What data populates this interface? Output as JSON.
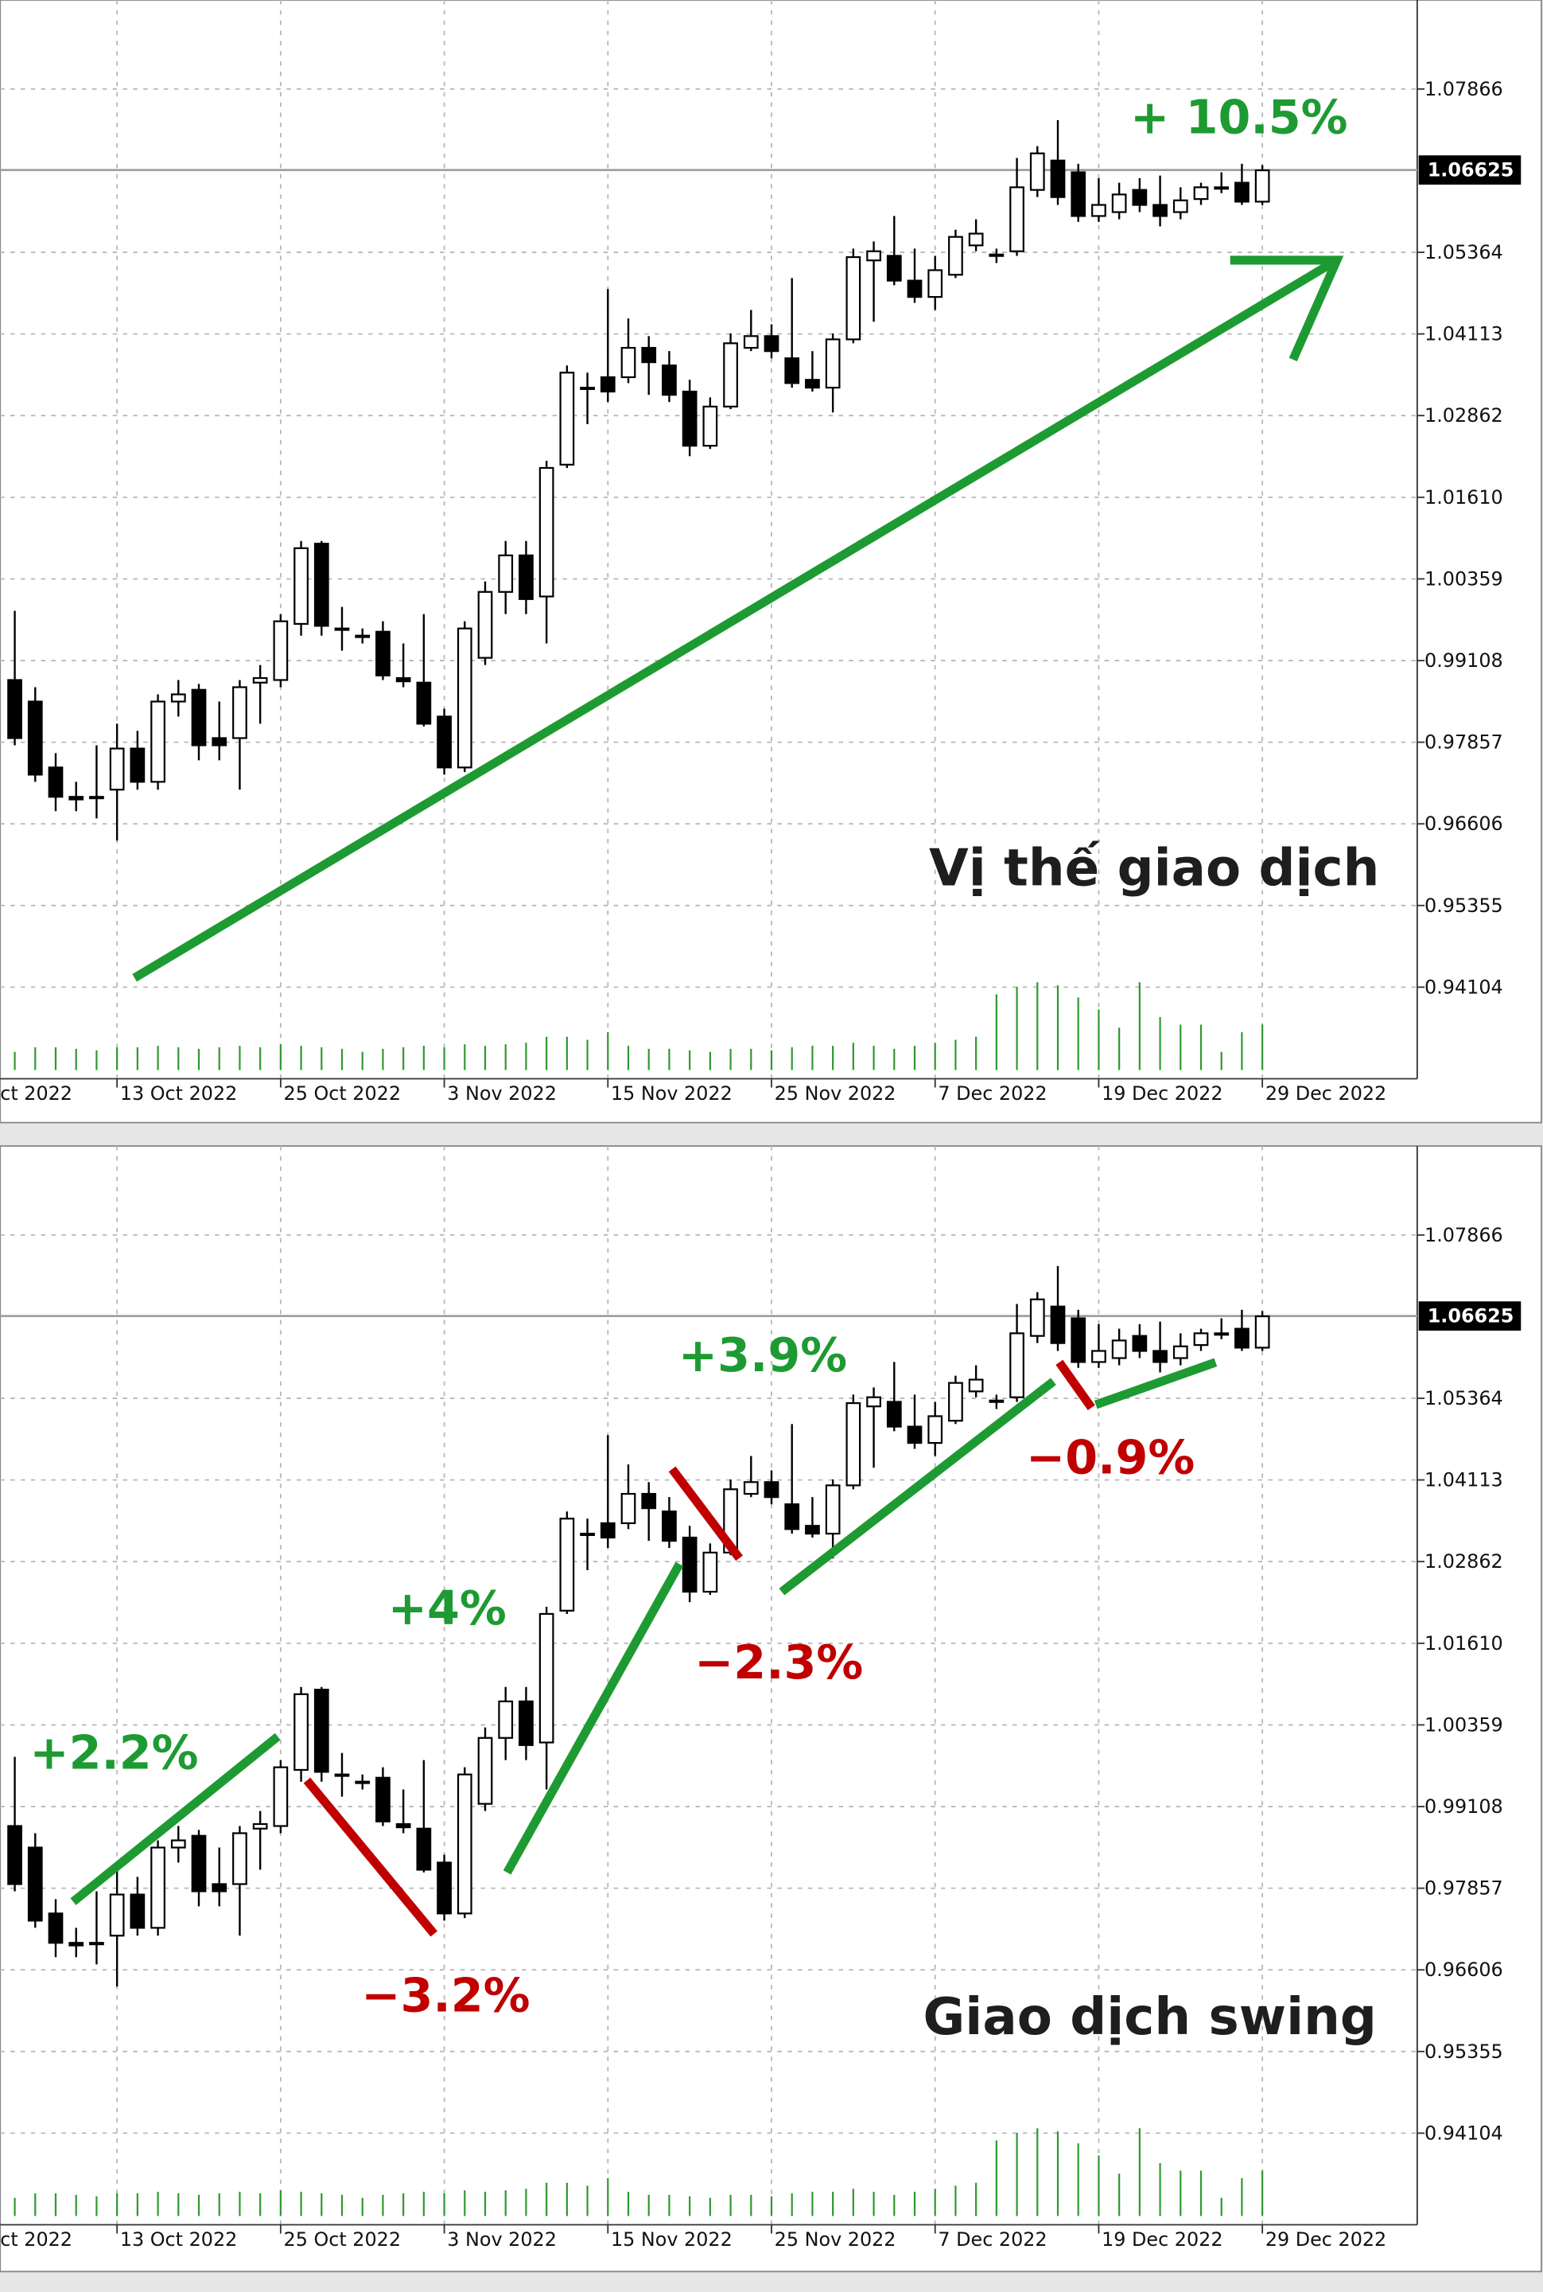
{
  "chart_data": [
    {
      "type": "candlestick",
      "label": "Vị thế giao dịch",
      "annotations": [
        {
          "text": "+ 10.5%",
          "color": "#1e9a32"
        }
      ],
      "categories": [
        "ct 2022",
        null,
        null,
        null,
        null,
        "13 Oct 2022",
        null,
        null,
        null,
        null,
        null,
        null,
        null,
        "25 Oct 2022",
        null,
        null,
        null,
        null,
        null,
        null,
        null,
        "3 Nov 2022",
        null,
        null,
        null,
        null,
        null,
        null,
        null,
        "15 Nov 2022",
        null,
        null,
        null,
        null,
        null,
        null,
        null,
        "25 Nov 2022",
        null,
        null,
        null,
        null,
        null,
        null,
        null,
        "7 Dec 2022",
        null,
        null,
        null,
        null,
        null,
        null,
        null,
        "19 Dec 2022",
        null,
        null,
        null,
        null,
        null,
        null,
        null,
        "29 Dec 2022"
      ],
      "open": [
        0.9881,
        0.9848,
        0.9747,
        0.9702,
        0.9702,
        0.9713,
        0.9776,
        0.9725,
        0.9848,
        0.9866,
        0.9792,
        0.9792,
        0.9877,
        0.9881,
        0.9967,
        1.009,
        0.996,
        0.9949,
        0.9955,
        0.9884,
        0.9877,
        0.9825,
        0.9747,
        0.9915,
        1.0016,
        1.0072,
        1.0009,
        1.0211,
        1.0329,
        1.0345,
        1.0345,
        1.039,
        1.0363,
        1.0323,
        1.024,
        1.03,
        1.039,
        1.0408,
        1.0374,
        1.0341,
        1.0329,
        1.0403,
        1.0524,
        1.0531,
        1.0493,
        1.0468,
        1.0502,
        1.0547,
        1.0531,
        1.0538,
        1.0632,
        1.0677,
        1.0659,
        1.0592,
        1.0598,
        1.0632,
        1.0609,
        1.0598,
        1.0618,
        1.0636,
        1.0643,
        1.0614
      ],
      "high": [
        0.9987,
        0.987,
        0.9769,
        0.9725,
        0.9781,
        0.9814,
        0.9803,
        0.9859,
        0.9881,
        0.9875,
        0.9848,
        0.9881,
        0.9904,
        0.9982,
        1.0094,
        1.0094,
        0.9993,
        0.996,
        0.9971,
        0.9937,
        0.9982,
        0.9837,
        0.9971,
        1.0032,
        1.0094,
        1.0094,
        1.0217,
        1.0363,
        1.0352,
        1.048,
        1.0435,
        1.0408,
        1.0385,
        1.0341,
        1.0314,
        1.0412,
        1.0448,
        1.0426,
        1.0497,
        1.0385,
        1.0412,
        1.0542,
        1.0553,
        1.0592,
        1.0542,
        1.0531,
        1.0571,
        1.0587,
        1.0542,
        1.0681,
        1.0699,
        1.0739,
        1.0672,
        1.065,
        1.0643,
        1.065,
        1.0654,
        1.0636,
        1.0643,
        1.0659,
        1.0672,
        1.067
      ],
      "low": [
        0.9781,
        0.9725,
        0.968,
        0.968,
        0.9669,
        0.9635,
        0.9713,
        0.9713,
        0.9825,
        0.9758,
        0.9758,
        0.9713,
        0.9814,
        0.987,
        0.9949,
        0.9949,
        0.9926,
        0.9937,
        0.9881,
        0.987,
        0.981,
        0.9736,
        0.974,
        0.9904,
        0.9982,
        0.9982,
        0.9937,
        1.0206,
        1.0273,
        1.0307,
        1.0336,
        1.0318,
        1.0307,
        1.0224,
        1.0235,
        1.0296,
        1.0385,
        1.0374,
        1.0329,
        1.0323,
        1.0291,
        1.0397,
        1.043,
        1.0486,
        1.0459,
        1.0448,
        1.0497,
        1.0538,
        1.052,
        1.0531,
        1.0621,
        1.0609,
        1.0583,
        1.0583,
        1.0587,
        1.0598,
        1.0576,
        1.0587,
        1.0609,
        1.0627,
        1.0609,
        1.0609
      ],
      "close": [
        0.9792,
        0.9736,
        0.9702,
        0.9698,
        0.97,
        0.9776,
        0.9725,
        0.9848,
        0.9859,
        0.9781,
        0.9781,
        0.987,
        0.9884,
        0.9971,
        1.0083,
        0.9964,
        0.9958,
        0.9947,
        0.9888,
        0.9879,
        0.9814,
        0.9747,
        0.996,
        1.0016,
        1.0072,
        1.0005,
        1.0206,
        1.0352,
        1.0327,
        1.0323,
        1.039,
        1.0368,
        1.0318,
        1.024,
        1.03,
        1.0397,
        1.0408,
        1.0385,
        1.0336,
        1.0329,
        1.0403,
        1.0529,
        1.0538,
        1.0493,
        1.0468,
        1.0509,
        1.056,
        1.0565,
        1.0533,
        1.0636,
        1.0688,
        1.0621,
        1.0592,
        1.0609,
        1.0625,
        1.0609,
        1.0592,
        1.0616,
        1.0636,
        1.0634,
        1.0614,
        1.0662
      ],
      "volume": [
        12,
        15,
        15,
        14,
        13,
        15,
        15,
        16,
        15,
        14,
        15,
        16,
        15,
        17,
        16,
        15,
        14,
        12,
        14,
        15,
        16,
        15,
        17,
        16,
        17,
        18,
        22,
        22,
        20,
        25,
        16,
        14,
        14,
        13,
        12,
        14,
        14,
        13,
        15,
        16,
        16,
        18,
        16,
        14,
        16,
        18,
        20,
        22,
        50,
        55,
        58,
        56,
        48,
        40,
        28,
        58,
        35,
        30,
        30,
        12,
        25,
        30
      ],
      "colors": {
        "up": "#ffffff",
        "down": "#000000",
        "volume": "#2e9a2e"
      },
      "current_price": 1.06625,
      "ylim": [
        0.927,
        1.0923
      ],
      "yticks": [
        0.94104,
        0.95355,
        0.96606,
        0.97857,
        0.99108,
        1.00359,
        {
          "value": 1.0161,
          "label": "1.01610"
        },
        1.02862,
        1.04113,
        1.05364,
        1.07866
      ],
      "grid": true
    },
    {
      "type": "candlestick",
      "label": "Giao dịch swing",
      "annotations": [
        {
          "text": "+2.2%",
          "color": "#1e9a32"
        },
        {
          "text": "−3.2%",
          "color": "#c00000"
        },
        {
          "text": "+4%",
          "color": "#1e9a32"
        },
        {
          "text": "−2.3%",
          "color": "#c00000"
        },
        {
          "text": "+3.9%",
          "color": "#1e9a32"
        },
        {
          "text": "−0.9%",
          "color": "#c00000"
        }
      ],
      "categories": [
        "ct 2022",
        null,
        null,
        null,
        null,
        "13 Oct 2022",
        null,
        null,
        null,
        null,
        null,
        null,
        null,
        "25 Oct 2022",
        null,
        null,
        null,
        null,
        null,
        null,
        null,
        "3 Nov 2022",
        null,
        null,
        null,
        null,
        null,
        null,
        null,
        "15 Nov 2022",
        null,
        null,
        null,
        null,
        null,
        null,
        null,
        "25 Nov 2022",
        null,
        null,
        null,
        null,
        null,
        null,
        null,
        "7 Dec 2022",
        null,
        null,
        null,
        null,
        null,
        null,
        null,
        "19 Dec 2022",
        null,
        null,
        null,
        null,
        null,
        null,
        null,
        "29 Dec 2022"
      ],
      "open": [
        0.9881,
        0.9848,
        0.9747,
        0.9702,
        0.9702,
        0.9713,
        0.9776,
        0.9725,
        0.9848,
        0.9866,
        0.9792,
        0.9792,
        0.9877,
        0.9881,
        0.9967,
        1.009,
        0.996,
        0.9949,
        0.9955,
        0.9884,
        0.9877,
        0.9825,
        0.9747,
        0.9915,
        1.0016,
        1.0072,
        1.0009,
        1.0211,
        1.0329,
        1.0345,
        1.0345,
        1.039,
        1.0363,
        1.0323,
        1.024,
        1.03,
        1.039,
        1.0408,
        1.0374,
        1.0341,
        1.0329,
        1.0403,
        1.0524,
        1.0531,
        1.0493,
        1.0468,
        1.0502,
        1.0547,
        1.0531,
        1.0538,
        1.0632,
        1.0677,
        1.0659,
        1.0592,
        1.0598,
        1.0632,
        1.0609,
        1.0598,
        1.0618,
        1.0636,
        1.0643,
        1.0614
      ],
      "high": [
        0.9987,
        0.987,
        0.9769,
        0.9725,
        0.9781,
        0.9814,
        0.9803,
        0.9859,
        0.9881,
        0.9875,
        0.9848,
        0.9881,
        0.9904,
        0.9982,
        1.0094,
        1.0094,
        0.9993,
        0.996,
        0.9971,
        0.9937,
        0.9982,
        0.9837,
        0.9971,
        1.0032,
        1.0094,
        1.0094,
        1.0217,
        1.0363,
        1.0352,
        1.048,
        1.0435,
        1.0408,
        1.0385,
        1.0341,
        1.0314,
        1.0412,
        1.0448,
        1.0426,
        1.0497,
        1.0385,
        1.0412,
        1.0542,
        1.0553,
        1.0592,
        1.0542,
        1.0531,
        1.0571,
        1.0587,
        1.0542,
        1.0681,
        1.0699,
        1.0739,
        1.0672,
        1.065,
        1.0643,
        1.065,
        1.0654,
        1.0636,
        1.0643,
        1.0659,
        1.0672,
        1.067
      ],
      "low": [
        0.9781,
        0.9725,
        0.968,
        0.968,
        0.9669,
        0.9635,
        0.9713,
        0.9713,
        0.9825,
        0.9758,
        0.9758,
        0.9713,
        0.9814,
        0.987,
        0.9949,
        0.9949,
        0.9926,
        0.9937,
        0.9881,
        0.987,
        0.981,
        0.9736,
        0.974,
        0.9904,
        0.9982,
        0.9982,
        0.9937,
        1.0206,
        1.0273,
        1.0307,
        1.0336,
        1.0318,
        1.0307,
        1.0224,
        1.0235,
        1.0296,
        1.0385,
        1.0374,
        1.0329,
        1.0323,
        1.0291,
        1.0397,
        1.043,
        1.0486,
        1.0459,
        1.0448,
        1.0497,
        1.0538,
        1.052,
        1.0531,
        1.0621,
        1.0609,
        1.0583,
        1.0583,
        1.0587,
        1.0598,
        1.0576,
        1.0587,
        1.0609,
        1.0627,
        1.0609,
        1.0609
      ],
      "close": [
        0.9792,
        0.9736,
        0.9702,
        0.9698,
        0.97,
        0.9776,
        0.9725,
        0.9848,
        0.9859,
        0.9781,
        0.9781,
        0.987,
        0.9884,
        0.9971,
        1.0083,
        0.9964,
        0.9958,
        0.9947,
        0.9888,
        0.9879,
        0.9814,
        0.9747,
        0.996,
        1.0016,
        1.0072,
        1.0005,
        1.0206,
        1.0352,
        1.0327,
        1.0323,
        1.039,
        1.0368,
        1.0318,
        1.024,
        1.03,
        1.0397,
        1.0408,
        1.0385,
        1.0336,
        1.0329,
        1.0403,
        1.0529,
        1.0538,
        1.0493,
        1.0468,
        1.0509,
        1.056,
        1.0565,
        1.0533,
        1.0636,
        1.0688,
        1.0621,
        1.0592,
        1.0609,
        1.0625,
        1.0609,
        1.0592,
        1.0616,
        1.0636,
        1.0634,
        1.0614,
        1.0662
      ],
      "volume": [
        12,
        15,
        15,
        14,
        13,
        15,
        15,
        16,
        15,
        14,
        15,
        16,
        15,
        17,
        16,
        15,
        14,
        12,
        14,
        15,
        16,
        15,
        17,
        16,
        17,
        18,
        22,
        22,
        20,
        25,
        16,
        14,
        14,
        13,
        12,
        14,
        14,
        13,
        15,
        16,
        16,
        18,
        16,
        14,
        16,
        18,
        20,
        22,
        50,
        55,
        58,
        56,
        48,
        40,
        28,
        58,
        35,
        30,
        30,
        12,
        25,
        30
      ],
      "colors": {
        "up": "#ffffff",
        "down": "#000000",
        "volume": "#2e9a2e"
      },
      "current_price": 1.06625,
      "ylim": [
        0.927,
        1.0923
      ],
      "yticks": [
        0.94104,
        0.95355,
        0.96606,
        0.97857,
        0.99108,
        1.00359,
        {
          "value": 1.0161,
          "label": "1.01610"
        },
        1.02862,
        1.04113,
        1.05364,
        1.07866
      ],
      "grid": true
    }
  ]
}
